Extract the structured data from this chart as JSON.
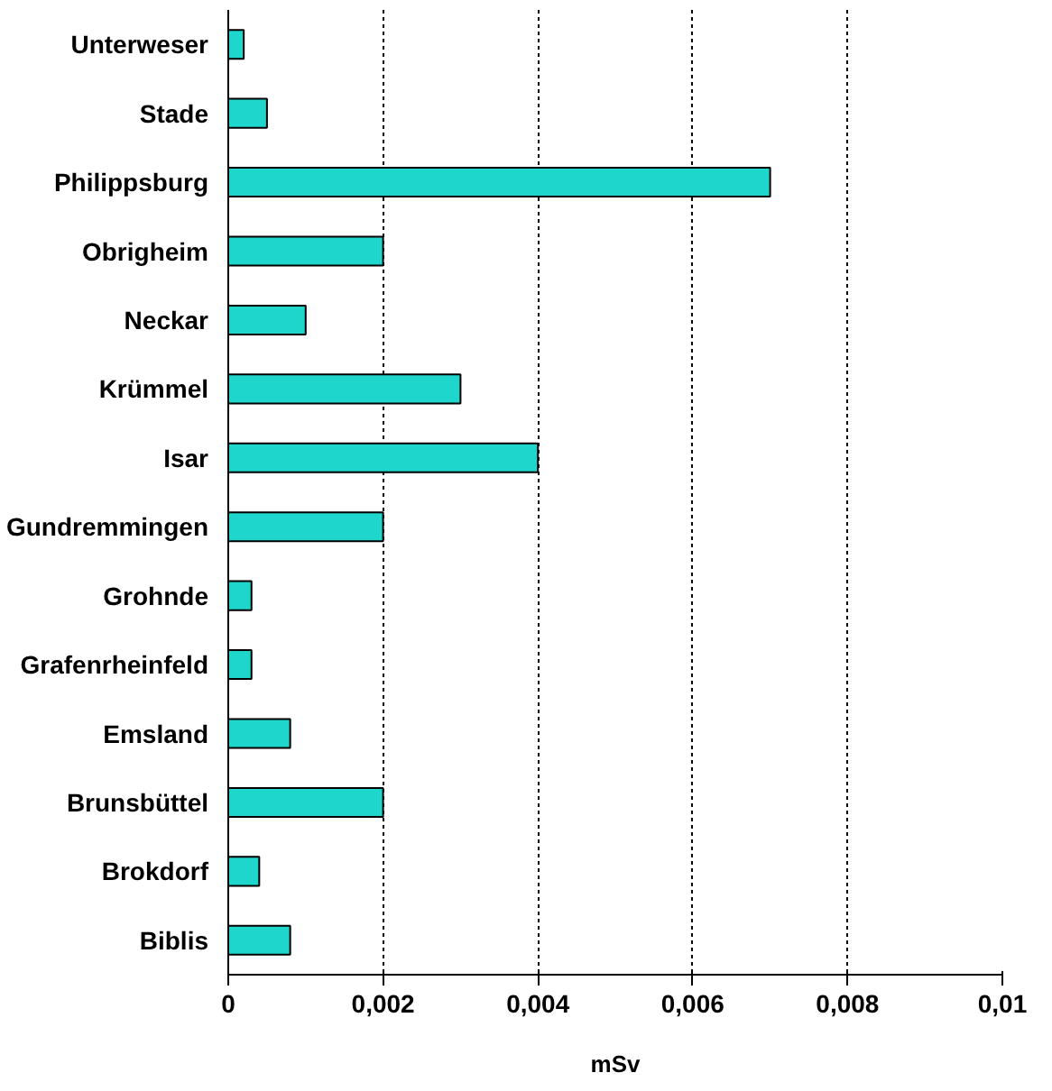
{
  "chart_data": {
    "type": "bar",
    "orientation": "horizontal",
    "xlabel": "mSv",
    "categories": [
      "Unterweser",
      "Stade",
      "Philippsburg",
      "Obrigheim",
      "Neckar",
      "Krümmel",
      "Isar",
      "Gundremmingen",
      "Grohnde",
      "Grafenrheinfeld",
      "Emsland",
      "Brunsbüttel",
      "Brokdorf",
      "Biblis"
    ],
    "values": [
      0.0002,
      0.0005,
      0.007,
      0.002,
      0.001,
      0.003,
      0.004,
      0.002,
      0.0003,
      0.0003,
      0.0008,
      0.002,
      0.0004,
      0.0008
    ],
    "color": "#1fd6cc",
    "xlim": [
      0,
      0.01
    ],
    "xticks": [
      {
        "value": 0,
        "label": "0"
      },
      {
        "value": 0.002,
        "label": "0,002"
      },
      {
        "value": 0.004,
        "label": "0,004"
      },
      {
        "value": 0.006,
        "label": "0,006"
      },
      {
        "value": 0.008,
        "label": "0,008"
      },
      {
        "value": 0.01,
        "label": "0,01"
      }
    ],
    "grid": "x"
  }
}
